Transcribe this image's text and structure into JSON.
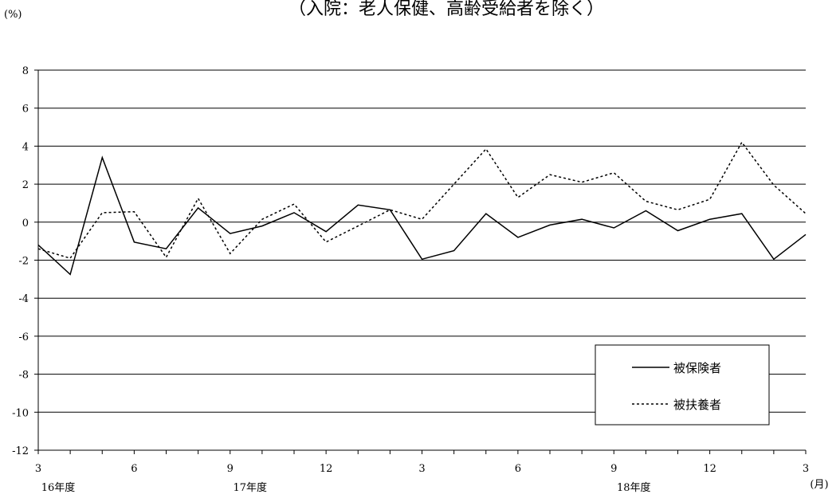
{
  "chart_data": {
    "type": "line",
    "title": "（入院：老人保健、高齢受給者を除く）",
    "ylabel": "(%)",
    "x_unit_label": "(月)",
    "ylim": [
      -12,
      8
    ],
    "yticks": [
      "8",
      "6",
      "4",
      "2",
      "0",
      "-2",
      "-4",
      "-6",
      "-8",
      "-10",
      "-12"
    ],
    "xtick_labels": [
      "3",
      "6",
      "9",
      "12",
      "3",
      "6",
      "9",
      "12",
      "3"
    ],
    "xtick_indices": [
      0,
      3,
      6,
      9,
      12,
      15,
      18,
      21,
      24
    ],
    "fiscal_year_labels": [
      {
        "label": "16年度",
        "index": 0
      },
      {
        "label": "17年度",
        "index": 6
      },
      {
        "label": "18年度",
        "index": 18
      }
    ],
    "grid": "horizontal",
    "legend_position": "bottom-right",
    "x": [
      "2005-03",
      "2005-04",
      "2005-05",
      "2005-06",
      "2005-07",
      "2005-08",
      "2005-09",
      "2005-10",
      "2005-11",
      "2005-12",
      "2006-01",
      "2006-02",
      "2006-03",
      "2006-04",
      "2006-05",
      "2006-06",
      "2006-07",
      "2006-08",
      "2006-09",
      "2006-10",
      "2006-11",
      "2006-12",
      "2007-01",
      "2007-02",
      "2007-03"
    ],
    "series": [
      {
        "name": "被保険者",
        "style": "solid",
        "color": "#000000",
        "values": [
          -1.2,
          -2.75,
          3.4,
          -1.05,
          -1.4,
          0.75,
          -0.6,
          -0.2,
          0.5,
          -0.5,
          0.9,
          0.65,
          -1.95,
          -1.5,
          0.45,
          -0.8,
          -0.15,
          0.15,
          -0.3,
          0.6,
          -0.45,
          0.15,
          0.45,
          -1.95,
          -0.65
        ]
      },
      {
        "name": "被扶養者",
        "style": "dotted",
        "color": "#000000",
        "values": [
          -1.4,
          -1.9,
          0.5,
          0.55,
          -1.85,
          1.25,
          -1.65,
          0.15,
          0.95,
          -1.05,
          -0.2,
          0.65,
          0.15,
          2.0,
          3.85,
          1.3,
          2.5,
          2.1,
          2.6,
          1.1,
          0.65,
          1.2,
          4.2,
          1.95,
          0.45
        ]
      }
    ]
  }
}
